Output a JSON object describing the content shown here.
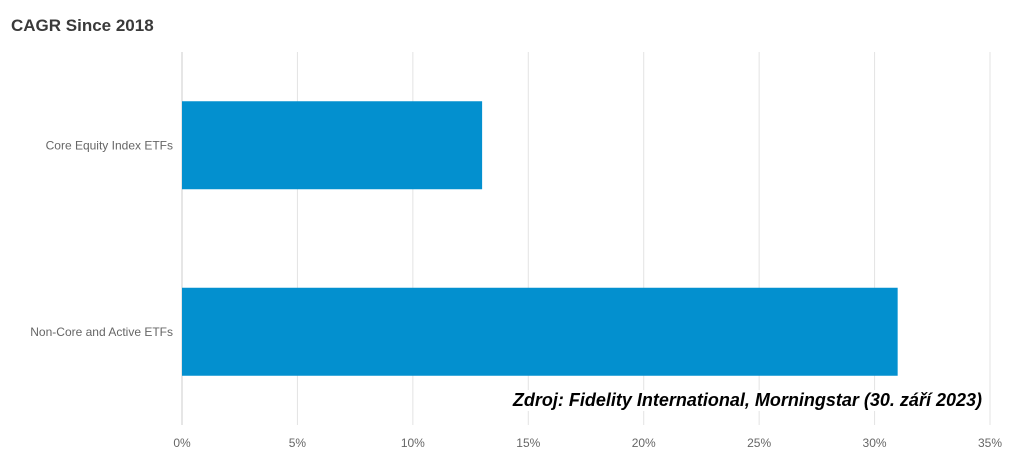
{
  "chart_data": {
    "type": "bar",
    "orientation": "horizontal",
    "title": "CAGR Since 2018",
    "categories": [
      "Core Equity Index ETFs",
      "Non-Core and Active ETFs"
    ],
    "values": [
      13,
      31
    ],
    "xlim": [
      0,
      35
    ],
    "x_ticks": [
      "0%",
      "5%",
      "10%",
      "15%",
      "20%",
      "25%",
      "30%",
      "35%"
    ],
    "xlabel": "",
    "ylabel": "",
    "grid": true,
    "legend": "none",
    "bar_color": "#0390cf",
    "source_note": "Zdroj: Fidelity International, Morningstar (30. září 2023)"
  }
}
